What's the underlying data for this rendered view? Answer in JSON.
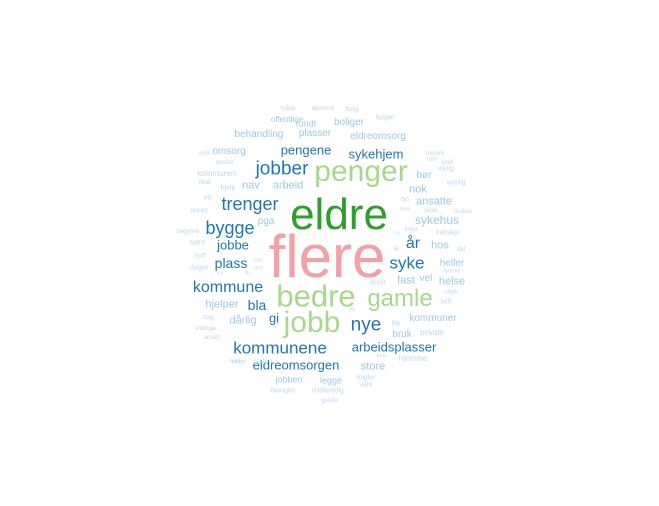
{
  "colors": {
    "pink": "#f4a0a6",
    "green": "#2ca02c",
    "light_green": "#a6d98b",
    "blue": "#1f77b4",
    "light_blue": "#9ec8e6",
    "pale_blue": "#bcd8ee"
  },
  "words": [
    {
      "text": "flere",
      "color": "pink"
    },
    {
      "text": "eldre",
      "color": "green"
    },
    {
      "text": "penger",
      "color": "light_green"
    },
    {
      "text": "bedre",
      "color": "light_green"
    },
    {
      "text": "jobb",
      "color": "light_green"
    },
    {
      "text": "gamle",
      "color": "light_green"
    },
    {
      "text": "jobber",
      "color": "blue"
    },
    {
      "text": "trenger",
      "color": "blue"
    },
    {
      "text": "bygge",
      "color": "blue"
    },
    {
      "text": "kommune",
      "color": "blue"
    },
    {
      "text": "kommunene",
      "color": "blue"
    },
    {
      "text": "nye",
      "color": "blue"
    },
    {
      "text": "syke",
      "color": "blue"
    },
    {
      "text": "år",
      "color": "blue"
    },
    {
      "text": "sykehjem",
      "color": "blue"
    },
    {
      "text": "pengene",
      "color": "blue"
    },
    {
      "text": "plass",
      "color": "blue"
    },
    {
      "text": "jobbe",
      "color": "blue"
    },
    {
      "text": "bla",
      "color": "blue"
    },
    {
      "text": "gi",
      "color": "blue"
    },
    {
      "text": "arbeidsplasser",
      "color": "blue"
    },
    {
      "text": "eldreomsorgen",
      "color": "blue"
    },
    {
      "text": "sykehus",
      "color": "light_blue"
    },
    {
      "text": "ansatte",
      "color": "light_blue"
    },
    {
      "text": "nok",
      "color": "light_blue"
    },
    {
      "text": "bør",
      "color": "light_blue"
    },
    {
      "text": "fast",
      "color": "light_blue"
    },
    {
      "text": "vel",
      "color": "light_blue"
    },
    {
      "text": "hos",
      "color": "light_blue"
    },
    {
      "text": "heller",
      "color": "light_blue"
    },
    {
      "text": "helse",
      "color": "light_blue"
    },
    {
      "text": "kommuner",
      "color": "light_blue"
    },
    {
      "text": "bruk",
      "color": "light_blue"
    },
    {
      "text": "store",
      "color": "light_blue"
    },
    {
      "text": "hjelper",
      "color": "light_blue"
    },
    {
      "text": "dårlig",
      "color": "light_blue"
    },
    {
      "text": "arbeid",
      "color": "light_blue"
    },
    {
      "text": "nav",
      "color": "light_blue"
    },
    {
      "text": "omsorg",
      "color": "light_blue"
    },
    {
      "text": "behandling",
      "color": "light_blue"
    },
    {
      "text": "plasser",
      "color": "light_blue"
    },
    {
      "text": "eldreomsorg",
      "color": "light_blue"
    },
    {
      "text": "boliger",
      "color": "light_blue"
    },
    {
      "text": "rundt",
      "color": "light_blue"
    },
    {
      "text": "offentlige",
      "color": "light_blue"
    },
    {
      "text": "jobben",
      "color": "light_blue"
    },
    {
      "text": "legge",
      "color": "light_blue"
    },
    {
      "text": "mangler",
      "color": "pale_blue"
    },
    {
      "text": "midlertidig",
      "color": "pale_blue"
    },
    {
      "text": "våre",
      "color": "pale_blue"
    },
    {
      "text": "migler",
      "color": "pale_blue"
    },
    {
      "text": "hjemme",
      "color": "pale_blue"
    },
    {
      "text": "private",
      "color": "pale_blue"
    },
    {
      "text": "sett",
      "color": "pale_blue"
    },
    {
      "text": "pga",
      "color": "light_blue"
    },
    {
      "text": "kommunen",
      "color": "pale_blue"
    },
    {
      "text": "hjelp",
      "color": "pale_blue"
    },
    {
      "text": "etc",
      "color": "pale_blue"
    },
    {
      "text": "annet",
      "color": "pale_blue"
    },
    {
      "text": "begynne",
      "color": "pale_blue"
    },
    {
      "text": "samt",
      "color": "pale_blue"
    },
    {
      "text": "nytt",
      "color": "pale_blue"
    },
    {
      "text": "dager",
      "color": "pale_blue"
    },
    {
      "text": "idag",
      "color": "pale_blue"
    },
    {
      "text": "stillinger",
      "color": "pale_blue"
    },
    {
      "text": "ansatt",
      "color": "pale_blue"
    },
    {
      "text": "veier",
      "color": "pale_blue"
    },
    {
      "text": "staten",
      "color": "pale_blue"
    },
    {
      "text": "kanskje",
      "color": "pale_blue"
    },
    {
      "text": "råd",
      "color": "pale_blue"
    },
    {
      "text": "viktig",
      "color": "pale_blue"
    },
    {
      "text": "verdig",
      "color": "pale_blue"
    },
    {
      "text": "ønsker",
      "color": "pale_blue"
    },
    {
      "text": "tiltak",
      "color": "pale_blue"
    },
    {
      "text": "små",
      "color": "pale_blue"
    },
    {
      "text": "rom",
      "color": "pale_blue"
    },
    {
      "text": "mindre",
      "color": "pale_blue"
    },
    {
      "text": "bygget",
      "color": "pale_blue"
    },
    {
      "text": "bolig",
      "color": "pale_blue"
    },
    {
      "text": "økonomi",
      "color": "pale_blue"
    },
    {
      "text": "måtte",
      "color": "pale_blue"
    },
    {
      "text": "skole",
      "color": "pale_blue"
    },
    {
      "text": "brukes",
      "color": "pale_blue"
    },
    {
      "text": "timer",
      "color": "pale_blue"
    },
    {
      "text": "unge",
      "color": "pale_blue"
    },
    {
      "text": "foreldre",
      "color": "pale_blue"
    },
    {
      "text": "brukt",
      "color": "pale_blue"
    },
    {
      "text": "lite",
      "color": "pale_blue"
    },
    {
      "text": "ferre",
      "color": "pale_blue"
    },
    {
      "text": "gjelder",
      "color": "pale_blue"
    },
    {
      "text": "mere",
      "color": "pale_blue"
    },
    {
      "text": "ute",
      "color": "pale_blue"
    },
    {
      "text": "lily",
      "color": "pale_blue"
    },
    {
      "text": "sted",
      "color": "pale_blue"
    },
    {
      "text": "osv",
      "color": "pale_blue"
    },
    {
      "text": "bo",
      "color": "pale_blue"
    },
    {
      "text": "sikre",
      "color": "pale_blue"
    },
    {
      "text": "la",
      "color": "pale_blue"
    },
    {
      "text": "m",
      "color": "pale_blue"
    },
    {
      "text": "ca",
      "color": "pale_blue"
    },
    {
      "text": "også",
      "color": "pale_blue"
    }
  ]
}
